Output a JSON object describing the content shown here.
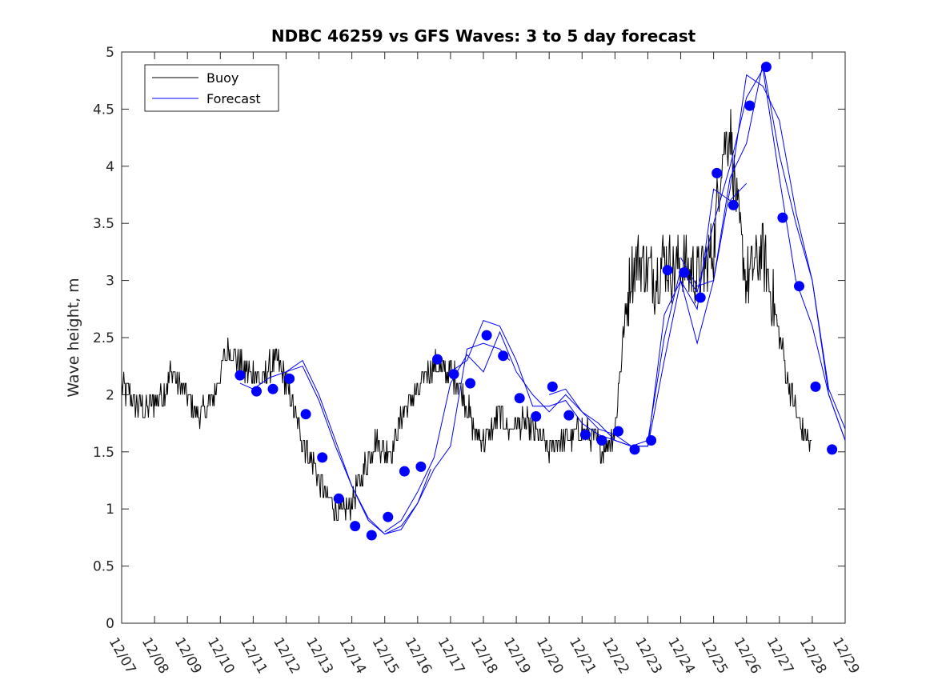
{
  "chart_data": {
    "type": "line",
    "title": "NDBC 46259 vs GFS Waves: 3 to 5 day forecast",
    "xlabel": "",
    "ylabel": "Wave height, m",
    "ylim": [
      0,
      5
    ],
    "xlim": [
      0,
      22
    ],
    "yticks": [
      0,
      0.5,
      1,
      1.5,
      2,
      2.5,
      3,
      3.5,
      4,
      4.5,
      5
    ],
    "xtick_labels": [
      "12/07",
      "12/08",
      "12/09",
      "12/10",
      "12/11",
      "12/12",
      "12/13",
      "12/14",
      "12/15",
      "12/16",
      "12/17",
      "12/18",
      "12/19",
      "12/20",
      "12/21",
      "12/22",
      "12/23",
      "12/24",
      "12/25",
      "12/26",
      "12/27",
      "12/28",
      "12/29"
    ],
    "x_units": "days since 12/07",
    "legend": {
      "location": "top-left",
      "entries": [
        "Buoy",
        "Forecast"
      ]
    },
    "series": [
      {
        "name": "Buoy",
        "color": "#000000",
        "x": [
          0,
          0.25,
          0.5,
          0.75,
          1,
          1.25,
          1.5,
          1.75,
          2,
          2.25,
          2.5,
          2.75,
          3,
          3.25,
          3.5,
          3.75,
          4,
          4.25,
          4.5,
          4.75,
          5,
          5.25,
          5.5,
          5.75,
          6,
          6.25,
          6.5,
          6.75,
          7,
          7.25,
          7.5,
          7.75,
          8,
          8.25,
          8.5,
          8.75,
          9,
          9.25,
          9.5,
          9.75,
          10,
          10.25,
          10.5,
          10.75,
          11,
          11.25,
          11.5,
          11.75,
          12,
          12.25,
          12.5,
          12.75,
          13,
          13.25,
          13.5,
          13.75,
          14,
          14.25,
          14.5,
          14.75,
          15,
          15.25,
          15.5,
          15.75,
          16,
          16.25,
          16.5,
          16.75,
          17,
          17.25,
          17.5,
          17.75,
          18,
          18.25,
          18.5,
          18.75,
          19,
          19.25,
          19.5,
          19.75,
          20,
          20.25,
          20.5,
          20.75,
          21
        ],
        "values": [
          2.05,
          2.0,
          1.9,
          1.85,
          1.95,
          2.0,
          2.2,
          2.1,
          2.0,
          1.85,
          1.85,
          1.95,
          2.2,
          2.4,
          2.3,
          2.2,
          2.2,
          2.1,
          2.25,
          2.3,
          2.1,
          1.85,
          1.6,
          1.45,
          1.25,
          1.1,
          1.0,
          0.95,
          1.05,
          1.25,
          1.45,
          1.6,
          1.5,
          1.55,
          1.8,
          1.95,
          2.0,
          2.2,
          2.25,
          2.2,
          2.2,
          2.1,
          1.9,
          1.65,
          1.6,
          1.7,
          1.85,
          1.7,
          1.75,
          1.75,
          1.7,
          1.6,
          1.5,
          1.6,
          1.6,
          1.65,
          1.7,
          1.65,
          1.55,
          1.55,
          1.7,
          2.5,
          3.1,
          3.2,
          3.1,
          3.0,
          3.2,
          3.1,
          3.15,
          3.1,
          3.05,
          3.1,
          3.3,
          4.1,
          4.35,
          3.5,
          3.0,
          3.15,
          3.25,
          2.9,
          2.5,
          2.15,
          1.85,
          1.65,
          1.55
        ]
      }
    ],
    "forecast_series": [
      {
        "name": "Forecast",
        "x": [
          3.6,
          4.0,
          4.5,
          5.0,
          5.5,
          6.0,
          6.5,
          7.0,
          7.5,
          8.0,
          8.5,
          9.0,
          9.4
        ],
        "values": [
          2.1,
          2.05,
          2.15,
          2.2,
          2.25,
          1.95,
          1.55,
          1.2,
          0.92,
          0.78,
          0.85,
          1.05,
          1.35
        ]
      },
      {
        "name": "Forecast",
        "x": [
          5.0,
          5.5,
          6.0,
          6.5,
          7.0,
          7.5,
          8.0,
          8.5,
          9.0,
          9.5,
          10.0,
          10.5,
          11.0,
          11.5,
          11.8
        ],
        "values": [
          2.2,
          2.3,
          2.0,
          1.6,
          1.2,
          0.9,
          0.78,
          0.82,
          1.05,
          1.35,
          1.55,
          2.4,
          2.45,
          2.4,
          2.3
        ]
      },
      {
        "name": "Forecast",
        "x": [
          8.0,
          8.5,
          9.0,
          9.5,
          10.0,
          10.5,
          11.0,
          11.5,
          12.0,
          12.5,
          13.0,
          13.5,
          14.0,
          14.5,
          15.0,
          15.5,
          16.0
        ],
        "values": [
          0.8,
          0.9,
          1.15,
          1.45,
          2.1,
          2.35,
          2.2,
          2.55,
          2.2,
          2.0,
          1.85,
          2.0,
          1.85,
          1.7,
          1.65,
          1.55,
          1.55
        ]
      },
      {
        "name": "Forecast",
        "x": [
          10.0,
          10.5,
          11.0,
          11.5,
          12.0,
          12.5,
          13.0,
          13.5,
          14.0,
          14.5,
          15.0,
          15.5,
          16.0,
          16.5,
          17.0,
          17.5,
          18.0,
          18.5,
          19.0
        ],
        "values": [
          2.2,
          2.3,
          2.65,
          2.6,
          2.3,
          1.9,
          1.9,
          1.95,
          1.75,
          1.65,
          1.6,
          1.55,
          1.55,
          2.3,
          3.0,
          2.75,
          3.8,
          3.7,
          3.85
        ]
      },
      {
        "name": "Forecast",
        "x": [
          13.0,
          13.5,
          14.0,
          14.5,
          15.0,
          15.5,
          16.0,
          16.5,
          17.0,
          17.5,
          18.0,
          18.5,
          19.0,
          19.5,
          20.0,
          20.5,
          21.0,
          21.5,
          22.0
        ],
        "values": [
          2.0,
          2.05,
          1.85,
          1.75,
          1.6,
          1.55,
          1.6,
          2.5,
          3.1,
          2.9,
          3.5,
          4.0,
          4.6,
          4.85,
          3.9,
          3.0,
          2.6,
          2.0,
          1.6
        ]
      },
      {
        "name": "Forecast",
        "x": [
          16.0,
          16.5,
          17.0,
          17.5,
          18.0,
          18.5,
          19.0,
          19.5,
          20.0,
          20.5,
          21.0,
          21.5,
          22.0
        ],
        "values": [
          1.55,
          2.7,
          3.0,
          2.45,
          3.0,
          3.9,
          4.2,
          4.9,
          4.1,
          3.5,
          3.0,
          2.0,
          1.6
        ]
      },
      {
        "name": "Forecast",
        "x": [
          17.0,
          17.5,
          18.0,
          18.5,
          19.0,
          19.5,
          20.0,
          20.5,
          21.0,
          21.5,
          22.0
        ],
        "values": [
          3.2,
          2.95,
          3.0,
          3.8,
          4.8,
          4.7,
          4.4,
          3.6,
          3.0,
          2.05,
          1.7
        ]
      }
    ],
    "forecast_points": {
      "x": [
        3.6,
        4.1,
        4.6,
        5.1,
        5.6,
        6.1,
        6.6,
        7.1,
        7.6,
        8.1,
        8.6,
        9.1,
        9.6,
        10.1,
        10.6,
        11.1,
        11.6,
        12.1,
        12.6,
        13.1,
        13.6,
        14.1,
        14.6,
        15.1,
        15.6,
        16.1,
        16.6,
        17.1,
        17.6,
        18.1,
        18.6,
        19.1,
        19.6,
        20.1,
        20.6,
        21.1,
        21.6
      ],
      "values": [
        2.17,
        2.03,
        2.05,
        2.14,
        1.83,
        1.45,
        1.09,
        0.85,
        0.77,
        0.93,
        1.33,
        1.37,
        2.31,
        2.18,
        2.1,
        2.52,
        2.34,
        1.97,
        1.81,
        2.07,
        1.82,
        1.65,
        1.6,
        1.68,
        1.52,
        1.6,
        3.09,
        3.07,
        2.85,
        3.94,
        3.66,
        4.53,
        4.87,
        3.55,
        2.95,
        2.07,
        1.52
      ]
    }
  },
  "colors": {
    "buoy": "#000000",
    "forecast": "#0000ff",
    "axes": "#262626"
  }
}
